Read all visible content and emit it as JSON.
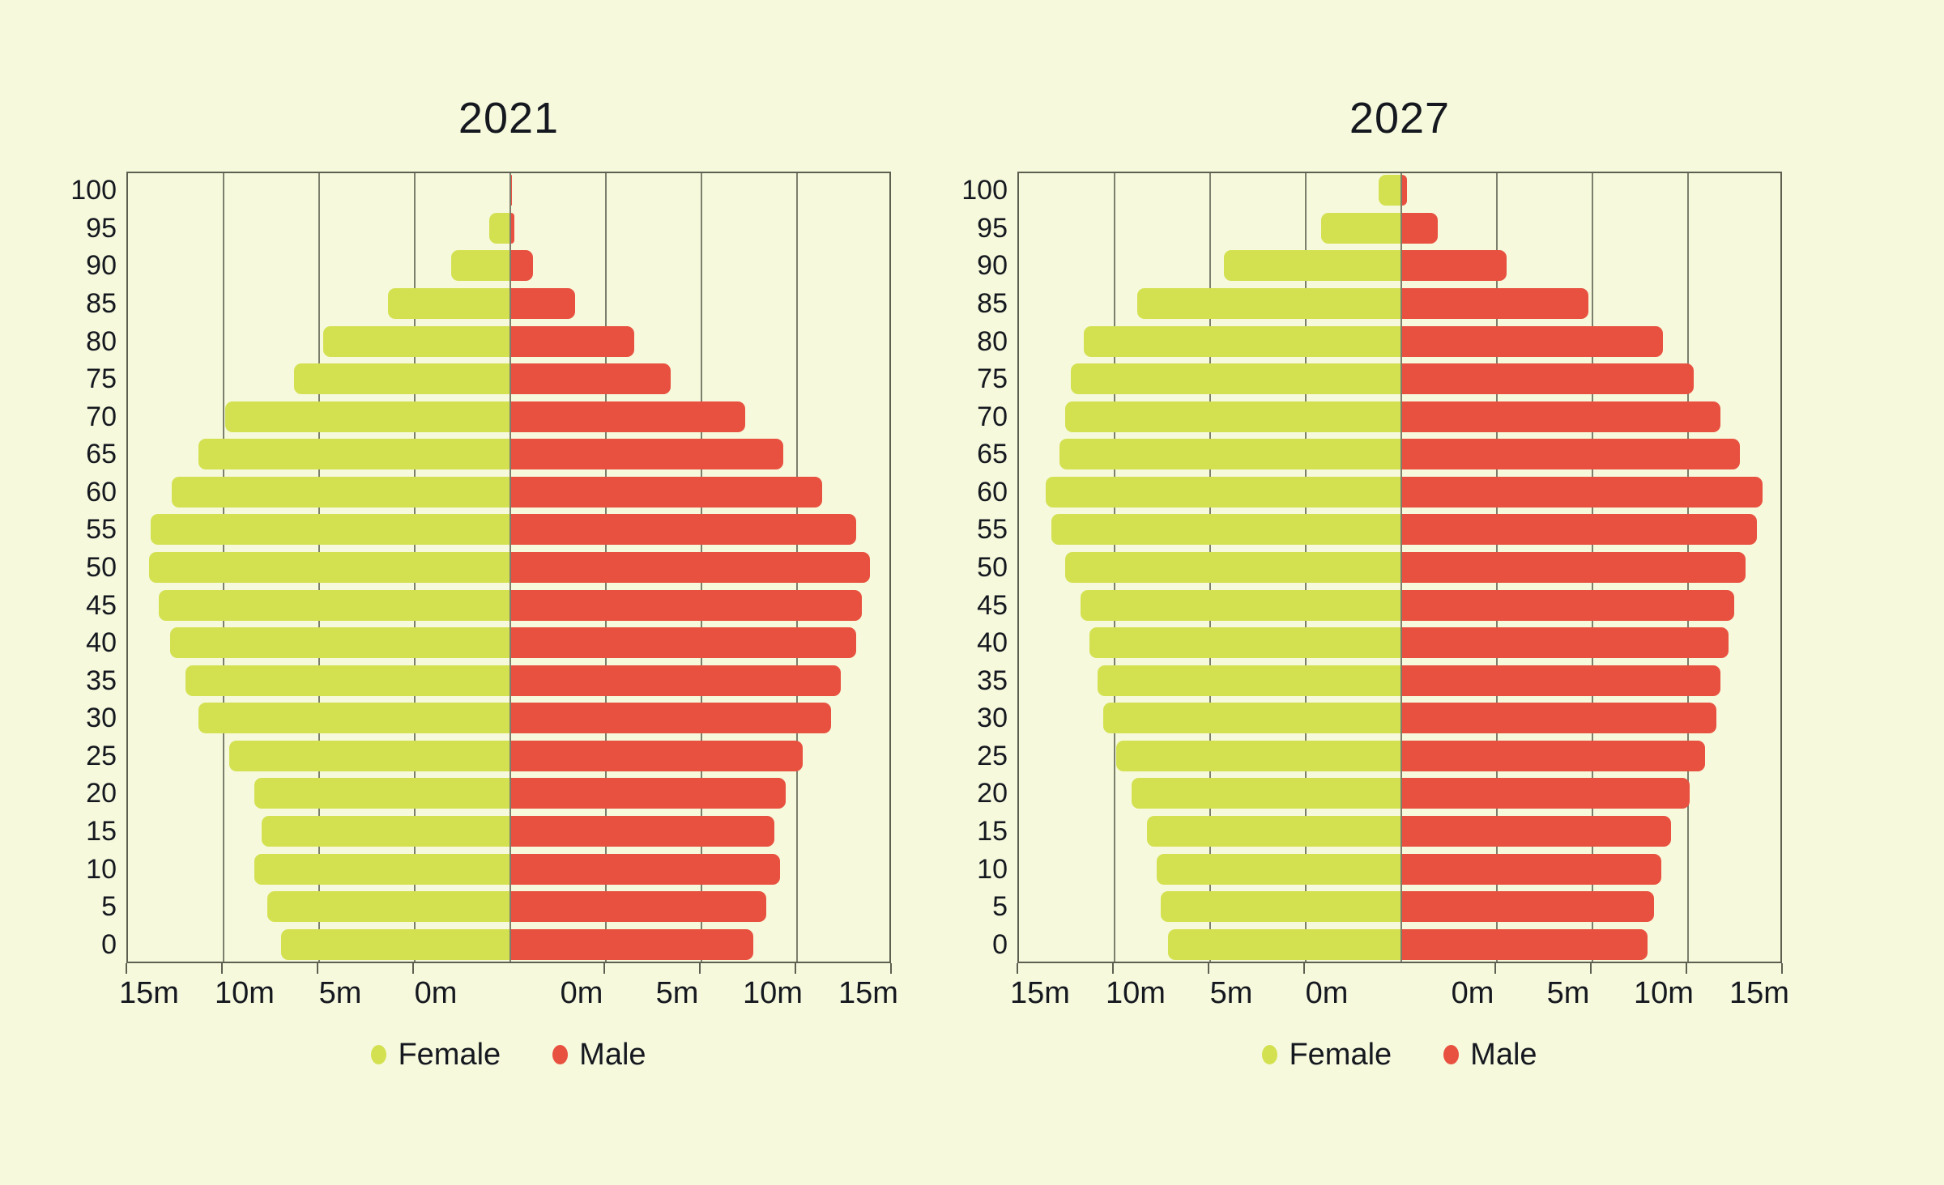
{
  "page": {
    "background_color": "#f6f9dc",
    "text_color": "#15191f",
    "gridline_color": "#5d6050"
  },
  "charts": [
    {
      "title": "2021",
      "x_tick_labels": {
        "female": [
          "15m",
          "10m",
          "5m",
          "0m"
        ],
        "male": [
          "0m",
          "5m",
          "10m",
          "15m"
        ]
      },
      "legend": [
        {
          "label": "Female",
          "color": "#d3e151"
        },
        {
          "label": "Male",
          "color": "#e85140"
        }
      ]
    },
    {
      "title": "2027",
      "x_tick_labels": {
        "female": [
          "15m",
          "10m",
          "5m",
          "0m"
        ],
        "male": [
          "0m",
          "5m",
          "10m",
          "15m"
        ]
      },
      "legend": [
        {
          "label": "Female",
          "color": "#d3e151"
        },
        {
          "label": "Male",
          "color": "#e85140"
        }
      ]
    }
  ],
  "chart_data": [
    {
      "type": "bar",
      "variant": "population_pyramid",
      "title": "2021",
      "unit": "millions of people",
      "age_groups": [
        0,
        5,
        10,
        15,
        20,
        25,
        30,
        35,
        40,
        45,
        50,
        55,
        60,
        65,
        70,
        75,
        80,
        85,
        90,
        95,
        100
      ],
      "series": [
        {
          "name": "Female",
          "side": "left",
          "color": "#d3e151",
          "values": [
            12.0,
            12.7,
            13.4,
            13.0,
            13.4,
            14.7,
            16.3,
            17.0,
            17.8,
            18.4,
            18.9,
            18.8,
            17.7,
            16.3,
            14.9,
            11.3,
            9.8,
            6.4,
            3.1,
            1.1,
            0.03
          ]
        },
        {
          "name": "Male",
          "side": "right",
          "color": "#e85140",
          "values": [
            12.7,
            13.4,
            14.1,
            13.8,
            14.4,
            15.3,
            16.8,
            17.3,
            18.1,
            18.4,
            18.8,
            18.1,
            16.3,
            14.3,
            12.3,
            8.4,
            6.5,
            3.4,
            1.2,
            0.2,
            0.1
          ]
        }
      ],
      "axis": {
        "half_range_m": 20,
        "gridline_interval_m": 5,
        "labeled_ticks_each_side": [
          15,
          10,
          5,
          0
        ]
      },
      "grid": true,
      "legend_position": "bottom"
    },
    {
      "type": "bar",
      "variant": "population_pyramid",
      "title": "2027",
      "unit": "millions of people",
      "age_groups": [
        0,
        5,
        10,
        15,
        20,
        25,
        30,
        35,
        40,
        45,
        50,
        55,
        60,
        65,
        70,
        75,
        80,
        85,
        90,
        95,
        100
      ],
      "series": [
        {
          "name": "Female",
          "side": "left",
          "color": "#d3e151",
          "values": [
            12.2,
            12.6,
            12.8,
            13.3,
            14.1,
            14.9,
            15.6,
            15.9,
            16.3,
            16.8,
            17.6,
            18.3,
            18.6,
            17.9,
            17.6,
            17.3,
            16.6,
            13.8,
            9.3,
            4.2,
            1.2
          ]
        },
        {
          "name": "Male",
          "side": "right",
          "color": "#e85140",
          "values": [
            12.9,
            13.2,
            13.6,
            14.1,
            15.1,
            15.9,
            16.5,
            16.7,
            17.1,
            17.4,
            18.0,
            18.6,
            18.9,
            17.7,
            16.7,
            15.3,
            13.7,
            9.8,
            5.5,
            1.9,
            0.3
          ]
        }
      ],
      "axis": {
        "half_range_m": 20,
        "gridline_interval_m": 5,
        "labeled_ticks_each_side": [
          15,
          10,
          5,
          0
        ]
      },
      "grid": true,
      "legend_position": "bottom"
    }
  ]
}
